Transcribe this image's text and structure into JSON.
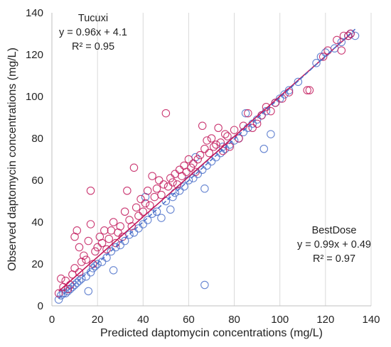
{
  "chart_data": {
    "type": "scatter",
    "title": "",
    "xlabel": "Predicted daptomycin concentrations (mg/L)",
    "ylabel": "Observed daptomycin concentrations (mg/L)",
    "xlim": [
      0,
      140
    ],
    "ylim": [
      0,
      140
    ],
    "xticks": [
      "0",
      "20",
      "40",
      "60",
      "80",
      "100",
      "120",
      "140"
    ],
    "yticks": [
      "0",
      "20",
      "40",
      "60",
      "80",
      "100",
      "120",
      "140"
    ],
    "grid": "vertical",
    "colors": {
      "Tucuxi": "#c2185b",
      "BestDose": "#4a6fc9"
    },
    "annotations": [
      {
        "series": "Tucuxi",
        "lines": [
          "Tucuxi",
          "y = 0.96x + 4.1",
          "R² = 0.95"
        ]
      },
      {
        "series": "BestDose",
        "lines": [
          "BestDose",
          "y = 0.99x + 0.49",
          "R² = 0.97"
        ]
      }
    ],
    "series": [
      {
        "name": "Tucuxi",
        "trendline": {
          "slope": 0.96,
          "intercept": 4.1,
          "x_range": [
            3,
            131
          ]
        },
        "points": [
          [
            3,
            6
          ],
          [
            4,
            13
          ],
          [
            5,
            9
          ],
          [
            6,
            12
          ],
          [
            7,
            8
          ],
          [
            8,
            10
          ],
          [
            9,
            15
          ],
          [
            10,
            18
          ],
          [
            10,
            33
          ],
          [
            11,
            36
          ],
          [
            12,
            16
          ],
          [
            12,
            28
          ],
          [
            13,
            21
          ],
          [
            14,
            24
          ],
          [
            15,
            22
          ],
          [
            16,
            31
          ],
          [
            17,
            55
          ],
          [
            17,
            39
          ],
          [
            18,
            20
          ],
          [
            19,
            26
          ],
          [
            20,
            28
          ],
          [
            21,
            33
          ],
          [
            22,
            30
          ],
          [
            23,
            36
          ],
          [
            24,
            27
          ],
          [
            25,
            32
          ],
          [
            26,
            36
          ],
          [
            27,
            40
          ],
          [
            28,
            30
          ],
          [
            29,
            35
          ],
          [
            30,
            38
          ],
          [
            31,
            33
          ],
          [
            32,
            45
          ],
          [
            33,
            55
          ],
          [
            34,
            41
          ],
          [
            35,
            38
          ],
          [
            36,
            66
          ],
          [
            37,
            47
          ],
          [
            38,
            43
          ],
          [
            39,
            51
          ],
          [
            40,
            45
          ],
          [
            41,
            49
          ],
          [
            42,
            55
          ],
          [
            43,
            48
          ],
          [
            44,
            62
          ],
          [
            45,
            52
          ],
          [
            46,
            56
          ],
          [
            47,
            60
          ],
          [
            48,
            53
          ],
          [
            49,
            58
          ],
          [
            50,
            92
          ],
          [
            51,
            57
          ],
          [
            52,
            61
          ],
          [
            53,
            59
          ],
          [
            54,
            63
          ],
          [
            55,
            58
          ],
          [
            56,
            65
          ],
          [
            57,
            62
          ],
          [
            58,
            67
          ],
          [
            59,
            64
          ],
          [
            60,
            70
          ],
          [
            61,
            66
          ],
          [
            62,
            68
          ],
          [
            63,
            64
          ],
          [
            64,
            70
          ],
          [
            65,
            72
          ],
          [
            66,
            86
          ],
          [
            67,
            75
          ],
          [
            68,
            79
          ],
          [
            69,
            73
          ],
          [
            70,
            80
          ],
          [
            71,
            76
          ],
          [
            72,
            77
          ],
          [
            73,
            85
          ],
          [
            74,
            78
          ],
          [
            75,
            74
          ],
          [
            76,
            82
          ],
          [
            77,
            81
          ],
          [
            78,
            76
          ],
          [
            80,
            84
          ],
          [
            82,
            80
          ],
          [
            84,
            86
          ],
          [
            86,
            92
          ],
          [
            88,
            85
          ],
          [
            90,
            87
          ],
          [
            92,
            91
          ],
          [
            94,
            95
          ],
          [
            96,
            93
          ],
          [
            98,
            97
          ],
          [
            101,
            99
          ],
          [
            104,
            102
          ],
          [
            112,
            103
          ],
          [
            113,
            103
          ],
          [
            119,
            119
          ],
          [
            121,
            122
          ],
          [
            125,
            127
          ],
          [
            127,
            122
          ],
          [
            128,
            129
          ],
          [
            130,
            129
          ],
          [
            131,
            130
          ]
        ]
      },
      {
        "name": "BestDose",
        "trendline": {
          "slope": 0.99,
          "intercept": 0.49,
          "x_range": [
            3,
            133
          ]
        },
        "points": [
          [
            3,
            3
          ],
          [
            4,
            5
          ],
          [
            5,
            6
          ],
          [
            6,
            6
          ],
          [
            7,
            7
          ],
          [
            8,
            8
          ],
          [
            9,
            9
          ],
          [
            10,
            10
          ],
          [
            11,
            11
          ],
          [
            12,
            12
          ],
          [
            13,
            13
          ],
          [
            15,
            14
          ],
          [
            16,
            7
          ],
          [
            17,
            16
          ],
          [
            18,
            18
          ],
          [
            19,
            19
          ],
          [
            20,
            20
          ],
          [
            22,
            21
          ],
          [
            24,
            23
          ],
          [
            26,
            26
          ],
          [
            27,
            17
          ],
          [
            28,
            28
          ],
          [
            30,
            29
          ],
          [
            32,
            31
          ],
          [
            34,
            34
          ],
          [
            36,
            35
          ],
          [
            38,
            37
          ],
          [
            40,
            39
          ],
          [
            41,
            52
          ],
          [
            42,
            41
          ],
          [
            44,
            44
          ],
          [
            46,
            45
          ],
          [
            48,
            42
          ],
          [
            50,
            50
          ],
          [
            52,
            46
          ],
          [
            53,
            52
          ],
          [
            54,
            54
          ],
          [
            56,
            55
          ],
          [
            58,
            57
          ],
          [
            60,
            60
          ],
          [
            62,
            61
          ],
          [
            63,
            71
          ],
          [
            64,
            63
          ],
          [
            66,
            65
          ],
          [
            67,
            56
          ],
          [
            68,
            67
          ],
          [
            70,
            69
          ],
          [
            72,
            71
          ],
          [
            74,
            73
          ],
          [
            75,
            76
          ],
          [
            76,
            75
          ],
          [
            78,
            77
          ],
          [
            80,
            79
          ],
          [
            82,
            80
          ],
          [
            84,
            83
          ],
          [
            85,
            92
          ],
          [
            86,
            85
          ],
          [
            88,
            87
          ],
          [
            90,
            89
          ],
          [
            92,
            91
          ],
          [
            93,
            75
          ],
          [
            94,
            93
          ],
          [
            96,
            82
          ],
          [
            98,
            97
          ],
          [
            100,
            99
          ],
          [
            102,
            101
          ],
          [
            104,
            103
          ],
          [
            108,
            107
          ],
          [
            116,
            116
          ],
          [
            118,
            119
          ],
          [
            120,
            121
          ],
          [
            124,
            123
          ],
          [
            127,
            126
          ],
          [
            130,
            129
          ],
          [
            131,
            130
          ],
          [
            133,
            129
          ],
          [
            67,
            10
          ]
        ]
      }
    ]
  }
}
